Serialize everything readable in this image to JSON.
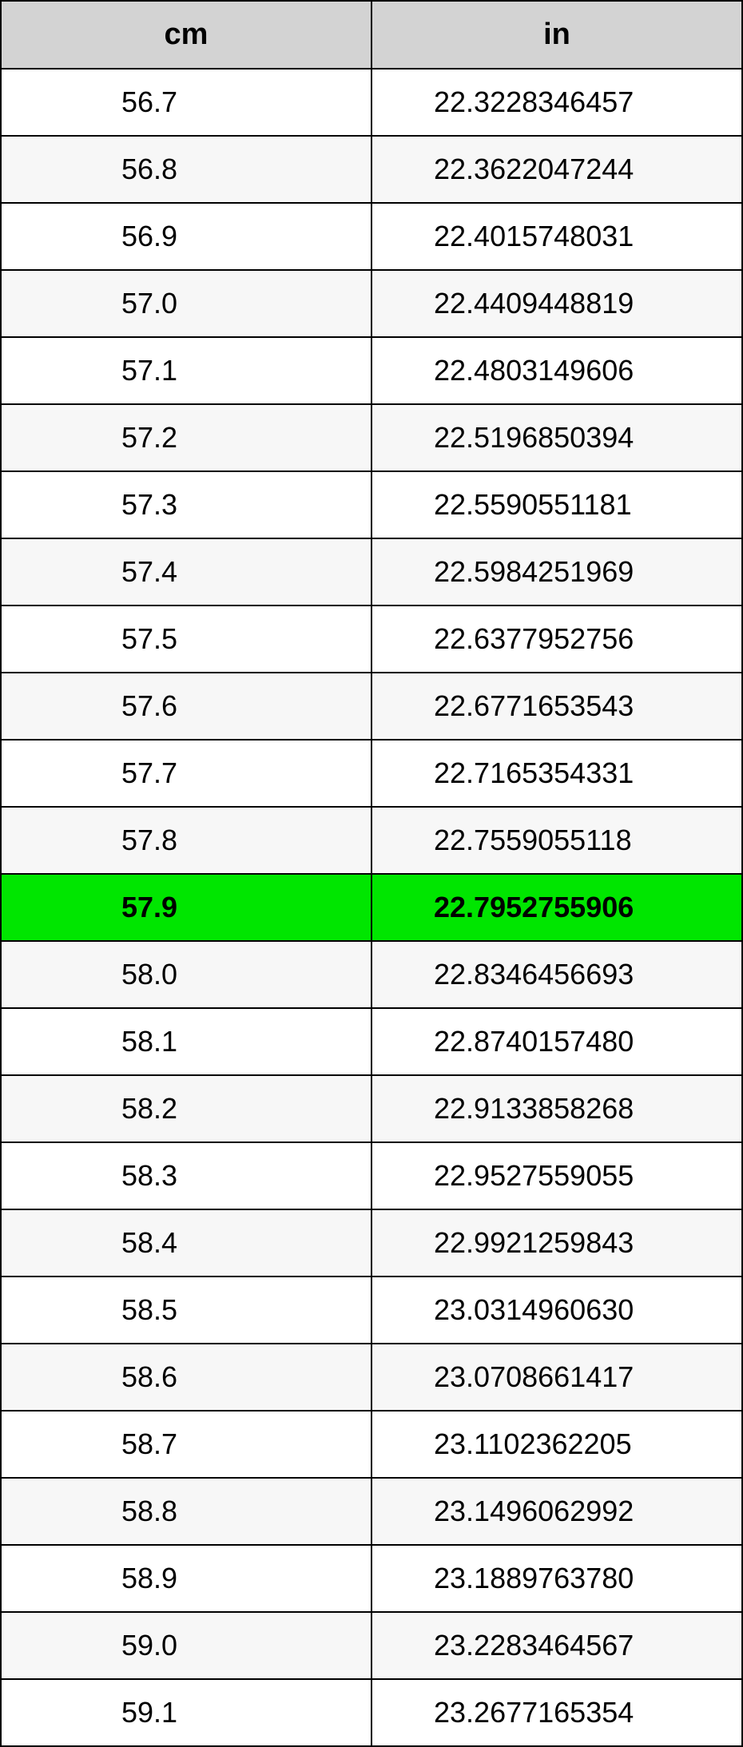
{
  "table": {
    "columns": [
      "cm",
      "in"
    ],
    "header_bg": "#d3d3d3",
    "border_color": "#000000",
    "row_even_bg": "#f7f7f7",
    "row_odd_bg": "#ffffff",
    "highlight_bg": "#00e600",
    "highlight_index": 12,
    "header_fontsize": 38,
    "cell_fontsize": 36,
    "rows": [
      [
        "56.7",
        "22.3228346457"
      ],
      [
        "56.8",
        "22.3622047244"
      ],
      [
        "56.9",
        "22.4015748031"
      ],
      [
        "57.0",
        "22.4409448819"
      ],
      [
        "57.1",
        "22.4803149606"
      ],
      [
        "57.2",
        "22.5196850394"
      ],
      [
        "57.3",
        "22.5590551181"
      ],
      [
        "57.4",
        "22.5984251969"
      ],
      [
        "57.5",
        "22.6377952756"
      ],
      [
        "57.6",
        "22.6771653543"
      ],
      [
        "57.7",
        "22.7165354331"
      ],
      [
        "57.8",
        "22.7559055118"
      ],
      [
        "57.9",
        "22.7952755906"
      ],
      [
        "58.0",
        "22.8346456693"
      ],
      [
        "58.1",
        "22.8740157480"
      ],
      [
        "58.2",
        "22.9133858268"
      ],
      [
        "58.3",
        "22.9527559055"
      ],
      [
        "58.4",
        "22.9921259843"
      ],
      [
        "58.5",
        "23.0314960630"
      ],
      [
        "58.6",
        "23.0708661417"
      ],
      [
        "58.7",
        "23.1102362205"
      ],
      [
        "58.8",
        "23.1496062992"
      ],
      [
        "58.9",
        "23.1889763780"
      ],
      [
        "59.0",
        "23.2283464567"
      ],
      [
        "59.1",
        "23.2677165354"
      ]
    ]
  }
}
